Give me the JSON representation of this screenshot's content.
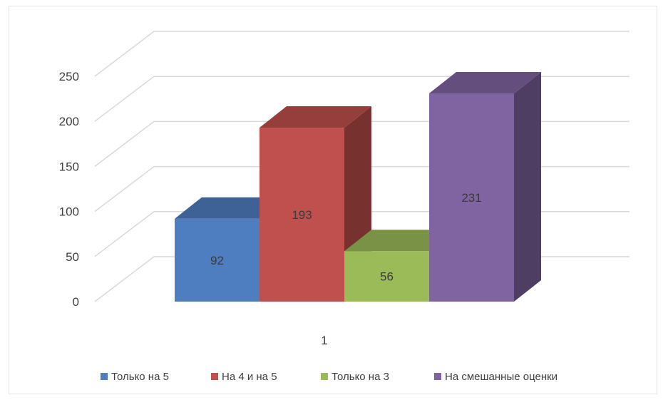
{
  "chart_data": {
    "type": "bar",
    "style": "3d-clustered-column",
    "categories": [
      "1"
    ],
    "series": [
      {
        "name": "Только на 5",
        "values": [
          92
        ],
        "color": "#4f7ec0"
      },
      {
        "name": "На 4 и на 5",
        "values": [
          193
        ],
        "color": "#c0504d"
      },
      {
        "name": "Только на 3",
        "values": [
          56
        ],
        "color": "#9bbb59"
      },
      {
        "name": "На смешанные оценки",
        "values": [
          231
        ],
        "color": "#8064a2"
      }
    ],
    "y_ticks": [
      "0",
      "50",
      "100",
      "150",
      "200",
      "250"
    ],
    "ylim": [
      0,
      250
    ],
    "grid": true,
    "legend_position": "bottom"
  }
}
